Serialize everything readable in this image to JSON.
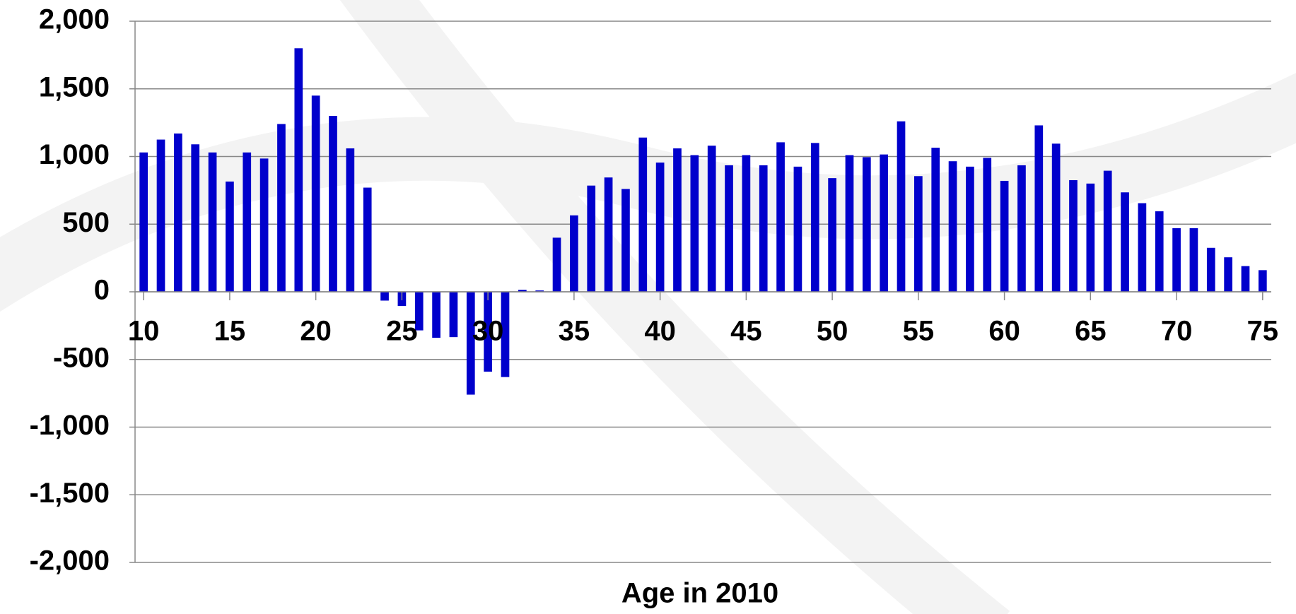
{
  "chart_data": {
    "type": "bar",
    "x_label": "Age in 2010",
    "x": [
      10,
      11,
      12,
      13,
      14,
      15,
      16,
      17,
      18,
      19,
      20,
      21,
      22,
      23,
      24,
      25,
      26,
      27,
      28,
      29,
      30,
      31,
      32,
      33,
      34,
      35,
      36,
      37,
      38,
      39,
      40,
      41,
      42,
      43,
      44,
      45,
      46,
      47,
      48,
      49,
      50,
      51,
      52,
      53,
      54,
      55,
      56,
      57,
      58,
      59,
      60,
      61,
      62,
      63,
      64,
      65,
      66,
      67,
      68,
      69,
      70,
      71,
      72,
      73,
      74,
      75
    ],
    "values": [
      1030,
      1125,
      1170,
      1090,
      1030,
      815,
      1030,
      985,
      1240,
      1800,
      1450,
      1300,
      1060,
      770,
      -65,
      -105,
      -285,
      -340,
      -335,
      -760,
      -590,
      -630,
      15,
      10,
      400,
      565,
      785,
      845,
      760,
      1140,
      955,
      1060,
      1010,
      1080,
      935,
      1010,
      935,
      1105,
      925,
      1100,
      840,
      1010,
      995,
      1015,
      1260,
      855,
      1065,
      965,
      925,
      990,
      820,
      935,
      1230,
      1095,
      825,
      800,
      895,
      735,
      655,
      595,
      470,
      470,
      325,
      255,
      190,
      160
    ],
    "color": "#0000cc",
    "xlim": [
      9.5,
      75.5
    ],
    "xticks": [
      10,
      15,
      20,
      25,
      30,
      35,
      40,
      45,
      50,
      55,
      60,
      65,
      70,
      75
    ],
    "ylim": [
      -2000,
      2000
    ],
    "yticks": [
      {
        "value": -2000,
        "label": "-2,000"
      },
      {
        "value": -1500,
        "label": "-1,500"
      },
      {
        "value": -1000,
        "label": "-1,000"
      },
      -500,
      0,
      500,
      {
        "value": 1000,
        "label": "1,000"
      },
      {
        "value": 1500,
        "label": "1,500"
      },
      {
        "value": 2000,
        "label": "2,000"
      }
    ],
    "grid": true
  }
}
